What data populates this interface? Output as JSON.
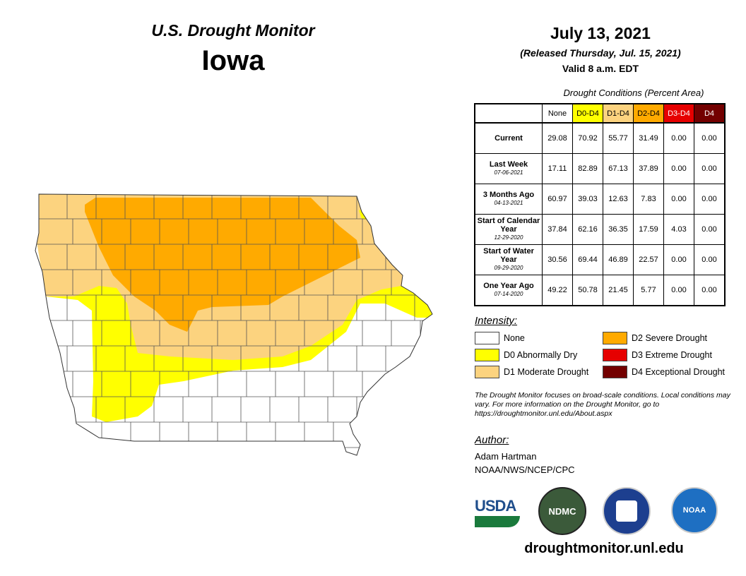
{
  "header": {
    "title": "U.S. Drought Monitor",
    "state": "Iowa",
    "date": "July 13, 2021",
    "released": "(Released Thursday, Jul. 15, 2021)",
    "valid": "Valid 8 a.m. EDT"
  },
  "table": {
    "caption": "Drought Conditions (Percent Area)",
    "columns": [
      {
        "label": "None",
        "color": "#ffffff",
        "text": "#000"
      },
      {
        "label": "D0-D4",
        "color": "#ffff00",
        "text": "#000"
      },
      {
        "label": "D1-D4",
        "color": "#fcd37f",
        "text": "#000"
      },
      {
        "label": "D2-D4",
        "color": "#ffaa00",
        "text": "#000"
      },
      {
        "label": "D3-D4",
        "color": "#e60000",
        "text": "#fff"
      },
      {
        "label": "D4",
        "color": "#730000",
        "text": "#fff"
      }
    ],
    "rows": [
      {
        "label": "Current",
        "date": "",
        "values": [
          "29.08",
          "70.92",
          "55.77",
          "31.49",
          "0.00",
          "0.00"
        ]
      },
      {
        "label": "Last Week",
        "date": "07-06-2021",
        "values": [
          "17.11",
          "82.89",
          "67.13",
          "37.89",
          "0.00",
          "0.00"
        ]
      },
      {
        "label": "3 Months Ago",
        "date": "04-13-2021",
        "values": [
          "60.97",
          "39.03",
          "12.63",
          "7.83",
          "0.00",
          "0.00"
        ]
      },
      {
        "label": "Start of Calendar Year",
        "date": "12-29-2020",
        "values": [
          "37.84",
          "62.16",
          "36.35",
          "17.59",
          "4.03",
          "0.00"
        ]
      },
      {
        "label": "Start of Water Year",
        "date": "09-29-2020",
        "values": [
          "30.56",
          "69.44",
          "46.89",
          "22.57",
          "0.00",
          "0.00"
        ]
      },
      {
        "label": "One Year Ago",
        "date": "07-14-2020",
        "values": [
          "49.22",
          "50.78",
          "21.45",
          "5.77",
          "0.00",
          "0.00"
        ]
      }
    ]
  },
  "legend": {
    "title": "Intensity:",
    "items": [
      {
        "label": "None",
        "color": "#ffffff"
      },
      {
        "label": "D0 Abnormally Dry",
        "color": "#ffff00"
      },
      {
        "label": "D1 Moderate Drought",
        "color": "#fcd37f"
      },
      {
        "label": "D2 Severe Drought",
        "color": "#ffaa00"
      },
      {
        "label": "D3 Extreme Drought",
        "color": "#e60000"
      },
      {
        "label": "D4 Exceptional Drought",
        "color": "#730000"
      }
    ]
  },
  "note": "The Drought Monitor focuses on broad-scale conditions. Local conditions may vary. For more information on the Drought Monitor, go to https://droughtmonitor.unl.edu/About.aspx",
  "author": {
    "heading": "Author:",
    "name": "Adam Hartman",
    "org": "NOAA/NWS/NCEP/CPC"
  },
  "logos": {
    "usda": "USDA",
    "ndmc": "NDMC",
    "noaa": "NOAA"
  },
  "footer_url": "droughtmonitor.unl.edu"
}
